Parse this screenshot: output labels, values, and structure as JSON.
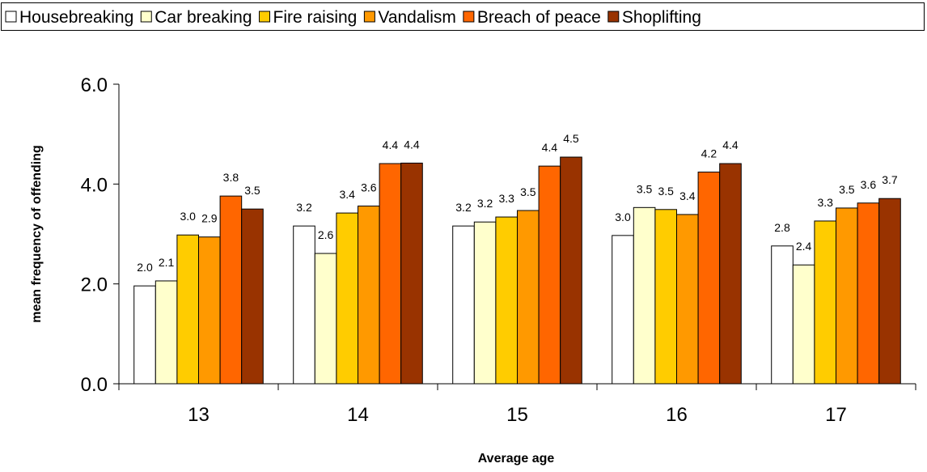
{
  "chart_data": {
    "type": "bar",
    "xlabel": "Average age",
    "ylabel": "mean frequency of offending",
    "categories": [
      "13",
      "14",
      "15",
      "16",
      "17"
    ],
    "ylim": [
      0,
      6
    ],
    "yticks": [
      {
        "value": 0,
        "label": "0.0"
      },
      {
        "value": 2,
        "label": "2.0"
      },
      {
        "value": 4,
        "label": "4.0"
      },
      {
        "value": 6,
        "label": "6.0"
      }
    ],
    "legend": "top",
    "series": [
      {
        "name": "Housebreaking",
        "color": "#ffffff",
        "values": [
          1.96,
          3.16,
          3.16,
          2.97,
          2.76
        ],
        "value_labels": [
          "2.0",
          "3.2",
          "3.2",
          "3.0",
          "2.8"
        ]
      },
      {
        "name": "Car breaking",
        "color": "#ffffcc",
        "values": [
          2.06,
          2.61,
          3.24,
          3.53,
          2.38
        ],
        "value_labels": [
          "2.1",
          "2.6",
          "3.2",
          "3.5",
          "2.4"
        ]
      },
      {
        "name": "Fire raising",
        "color": "#ffcc00",
        "values": [
          2.98,
          3.42,
          3.34,
          3.49,
          3.26
        ],
        "value_labels": [
          "3.0",
          "3.4",
          "3.3",
          "3.5",
          "3.3"
        ]
      },
      {
        "name": "Vandalism",
        "color": "#ff9900",
        "values": [
          2.94,
          3.56,
          3.47,
          3.39,
          3.52
        ],
        "value_labels": [
          "2.9",
          "3.6",
          "3.5",
          "3.4",
          "3.5"
        ]
      },
      {
        "name": "Breach of peace",
        "color": "#ff6600",
        "values": [
          3.76,
          4.41,
          4.36,
          4.24,
          3.62
        ],
        "value_labels": [
          "3.8",
          "4.4",
          "4.4",
          "4.2",
          "3.6"
        ]
      },
      {
        "name": "Shoplifting",
        "color": "#993300",
        "values": [
          3.5,
          4.42,
          4.54,
          4.41,
          3.71
        ],
        "value_labels": [
          "3.5",
          "4.4",
          "4.5",
          "4.4",
          "3.7"
        ]
      }
    ]
  }
}
